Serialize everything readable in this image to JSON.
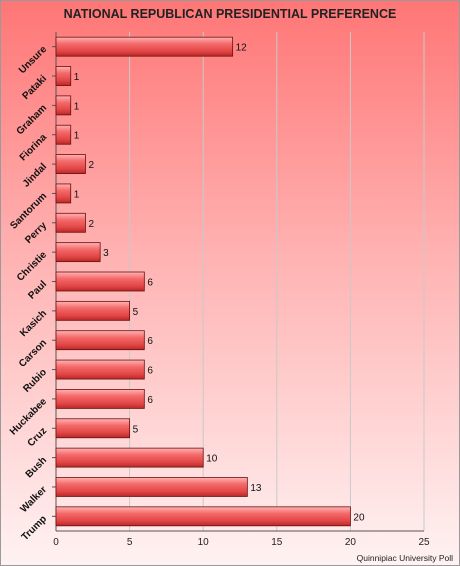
{
  "chart_data": {
    "type": "bar",
    "orientation": "horizontal",
    "title": "NATIONAL REPUBLICAN PRESIDENTIAL PREFERENCE",
    "categories": [
      "Unsure",
      "Pataki",
      "Graham",
      "Fiorina",
      "Jindal",
      "Santorum",
      "Perry",
      "Christie",
      "Paul",
      "Kasich",
      "Carson",
      "Rubio",
      "Huckabee",
      "Cruz",
      "Bush",
      "Walker",
      "Trump"
    ],
    "values": [
      12,
      1,
      1,
      1,
      2,
      1,
      2,
      3,
      6,
      5,
      6,
      6,
      6,
      5,
      10,
      13,
      20
    ],
    "xlim": [
      0,
      25
    ],
    "xticks": [
      0,
      5,
      10,
      15,
      20,
      25
    ],
    "grid": true,
    "legend": "none",
    "bar_color": "#f05a5a",
    "source": "Quinnipiac University Poll"
  }
}
